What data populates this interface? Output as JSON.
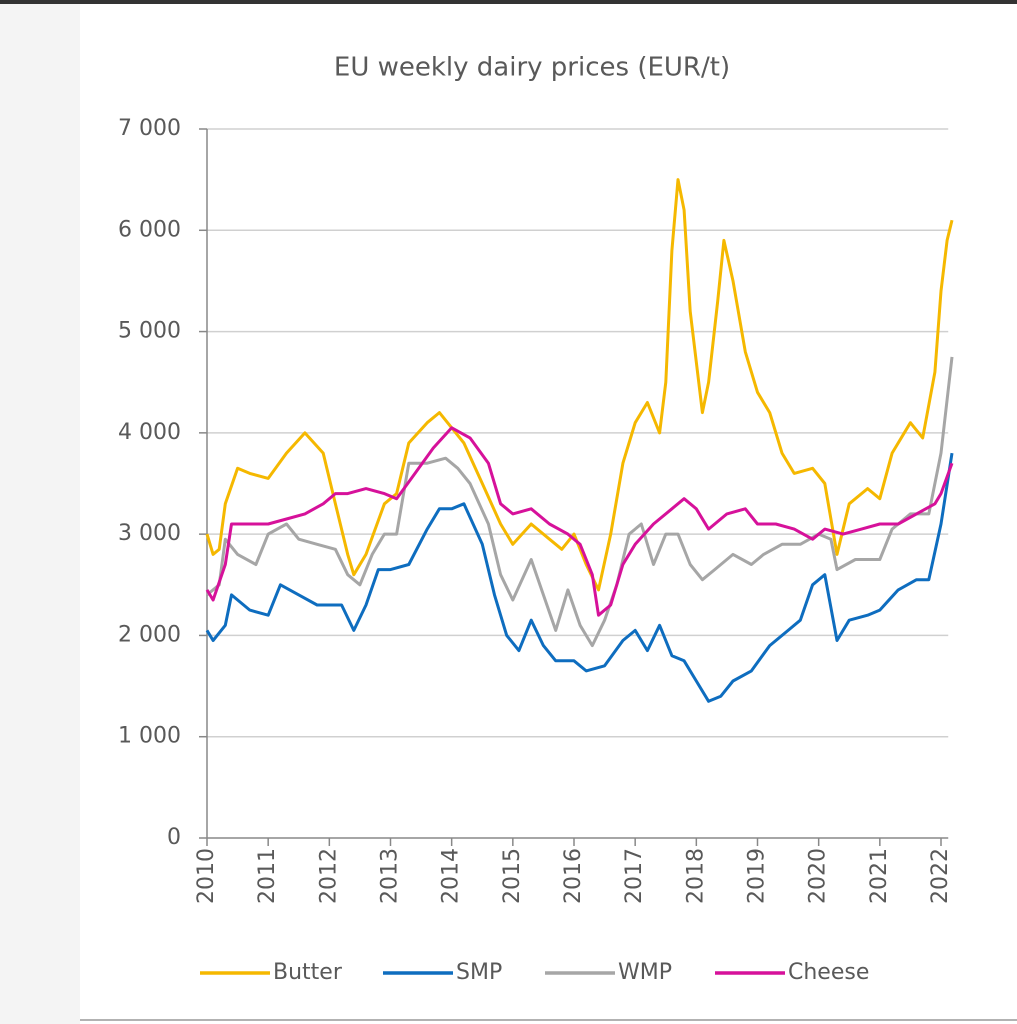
{
  "chart_data": {
    "type": "line",
    "title": "EU weekly dairy prices (EUR/t)",
    "xlim": [
      2010,
      2022.2
    ],
    "xticks": [
      2010,
      2011,
      2012,
      2013,
      2014,
      2015,
      2016,
      2017,
      2018,
      2019,
      2020,
      2021,
      2022
    ],
    "ylim": [
      0,
      7000
    ],
    "yticks": [
      0,
      {
        "value": 1000,
        "label": "1 000"
      },
      {
        "value": 2000,
        "label": "2 000"
      },
      {
        "value": 3000,
        "label": "3 000"
      },
      {
        "value": 4000,
        "label": "4 000"
      },
      {
        "value": 5000,
        "label": "5 000"
      },
      {
        "value": 6000,
        "label": "6 000"
      },
      {
        "value": 7000,
        "label": "7 000"
      }
    ],
    "grid": true,
    "legend": "bottom",
    "series": [
      {
        "name": "Butter",
        "color": "#f5b800",
        "x": [
          2010.0,
          2010.1,
          2010.2,
          2010.3,
          2010.5,
          2010.7,
          2011.0,
          2011.3,
          2011.6,
          2011.9,
          2012.1,
          2012.3,
          2012.4,
          2012.6,
          2012.9,
          2013.1,
          2013.3,
          2013.6,
          2013.8,
          2014.0,
          2014.2,
          2014.5,
          2014.8,
          2015.0,
          2015.3,
          2015.6,
          2015.8,
          2016.0,
          2016.2,
          2016.4,
          2016.6,
          2016.8,
          2017.0,
          2017.2,
          2017.4,
          2017.5,
          2017.6,
          2017.7,
          2017.8,
          2017.9,
          2018.1,
          2018.2,
          2018.35,
          2018.45,
          2018.6,
          2018.8,
          2019.0,
          2019.2,
          2019.4,
          2019.6,
          2019.9,
          2020.1,
          2020.3,
          2020.5,
          2020.8,
          2021.0,
          2021.2,
          2021.5,
          2021.7,
          2021.9,
          2022.0,
          2022.1,
          2022.18
        ],
        "values": [
          3000,
          2800,
          2850,
          3300,
          3650,
          3600,
          3550,
          3800,
          4000,
          3800,
          3300,
          2800,
          2600,
          2800,
          3300,
          3400,
          3900,
          4100,
          4200,
          4050,
          3900,
          3500,
          3100,
          2900,
          3100,
          2950,
          2850,
          3000,
          2700,
          2450,
          3000,
          3700,
          4100,
          4300,
          4000,
          4500,
          5800,
          6500,
          6200,
          5200,
          4200,
          4500,
          5300,
          5900,
          5500,
          4800,
          4400,
          4200,
          3800,
          3600,
          3650,
          3500,
          2800,
          3300,
          3450,
          3350,
          3800,
          4100,
          3950,
          4600,
          5400,
          5900,
          6100
        ]
      },
      {
        "name": "SMP",
        "color": "#0e6dbf",
        "x": [
          2010.0,
          2010.1,
          2010.3,
          2010.4,
          2010.7,
          2011.0,
          2011.2,
          2011.5,
          2011.8,
          2012.2,
          2012.4,
          2012.6,
          2012.8,
          2013.0,
          2013.3,
          2013.6,
          2013.8,
          2014.0,
          2014.2,
          2014.5,
          2014.7,
          2014.9,
          2015.1,
          2015.3,
          2015.5,
          2015.7,
          2016.0,
          2016.2,
          2016.5,
          2016.8,
          2017.0,
          2017.2,
          2017.4,
          2017.6,
          2017.8,
          2018.0,
          2018.2,
          2018.4,
          2018.6,
          2018.9,
          2019.2,
          2019.5,
          2019.7,
          2019.9,
          2020.1,
          2020.3,
          2020.5,
          2020.8,
          2021.0,
          2021.3,
          2021.6,
          2021.8,
          2022.0,
          2022.18
        ],
        "values": [
          2050,
          1950,
          2100,
          2400,
          2250,
          2200,
          2500,
          2400,
          2300,
          2300,
          2050,
          2300,
          2650,
          2650,
          2700,
          3050,
          3250,
          3250,
          3300,
          2900,
          2400,
          2000,
          1850,
          2150,
          1900,
          1750,
          1750,
          1650,
          1700,
          1950,
          2050,
          1850,
          2100,
          1800,
          1750,
          1550,
          1350,
          1400,
          1550,
          1650,
          1900,
          2050,
          2150,
          2500,
          2600,
          1950,
          2150,
          2200,
          2250,
          2450,
          2550,
          2550,
          3100,
          3800
        ]
      },
      {
        "name": "WMP",
        "color": "#a6a6a6",
        "x": [
          2010.0,
          2010.2,
          2010.3,
          2010.5,
          2010.8,
          2011.0,
          2011.3,
          2011.5,
          2011.8,
          2012.1,
          2012.3,
          2012.5,
          2012.7,
          2012.9,
          2013.1,
          2013.3,
          2013.6,
          2013.9,
          2014.1,
          2014.3,
          2014.6,
          2014.8,
          2015.0,
          2015.3,
          2015.5,
          2015.7,
          2015.9,
          2016.1,
          2016.3,
          2016.5,
          2016.7,
          2016.9,
          2017.1,
          2017.3,
          2017.5,
          2017.7,
          2017.9,
          2018.1,
          2018.3,
          2018.6,
          2018.9,
          2019.1,
          2019.4,
          2019.7,
          2020.0,
          2020.2,
          2020.3,
          2020.6,
          2021.0,
          2021.2,
          2021.5,
          2021.8,
          2022.0,
          2022.18
        ],
        "values": [
          2400,
          2500,
          2950,
          2800,
          2700,
          3000,
          3100,
          2950,
          2900,
          2850,
          2600,
          2500,
          2800,
          3000,
          3000,
          3700,
          3700,
          3750,
          3650,
          3500,
          3100,
          2600,
          2350,
          2750,
          2400,
          2050,
          2450,
          2100,
          1900,
          2150,
          2500,
          3000,
          3100,
          2700,
          3000,
          3000,
          2700,
          2550,
          2650,
          2800,
          2700,
          2800,
          2900,
          2900,
          3000,
          2950,
          2650,
          2750,
          2750,
          3050,
          3200,
          3200,
          3800,
          4750
        ]
      },
      {
        "name": "Cheese",
        "color": "#d6119a",
        "x": [
          2010.0,
          2010.1,
          2010.3,
          2010.4,
          2010.7,
          2011.0,
          2011.3,
          2011.6,
          2011.9,
          2012.1,
          2012.3,
          2012.6,
          2012.9,
          2013.1,
          2013.4,
          2013.7,
          2014.0,
          2014.3,
          2014.6,
          2014.8,
          2015.0,
          2015.3,
          2015.6,
          2015.9,
          2016.1,
          2016.3,
          2016.4,
          2016.6,
          2016.8,
          2017.0,
          2017.3,
          2017.6,
          2017.8,
          2018.0,
          2018.2,
          2018.5,
          2018.8,
          2019.0,
          2019.3,
          2019.6,
          2019.9,
          2020.1,
          2020.4,
          2020.7,
          2021.0,
          2021.3,
          2021.6,
          2021.9,
          2022.0,
          2022.18
        ],
        "values": [
          2450,
          2350,
          2700,
          3100,
          3100,
          3100,
          3150,
          3200,
          3300,
          3400,
          3400,
          3450,
          3400,
          3350,
          3600,
          3850,
          4050,
          3950,
          3700,
          3300,
          3200,
          3250,
          3100,
          3000,
          2900,
          2600,
          2200,
          2300,
          2700,
          2900,
          3100,
          3250,
          3350,
          3250,
          3050,
          3200,
          3250,
          3100,
          3100,
          3050,
          2950,
          3050,
          3000,
          3050,
          3100,
          3100,
          3200,
          3300,
          3400,
          3700
        ]
      }
    ]
  }
}
